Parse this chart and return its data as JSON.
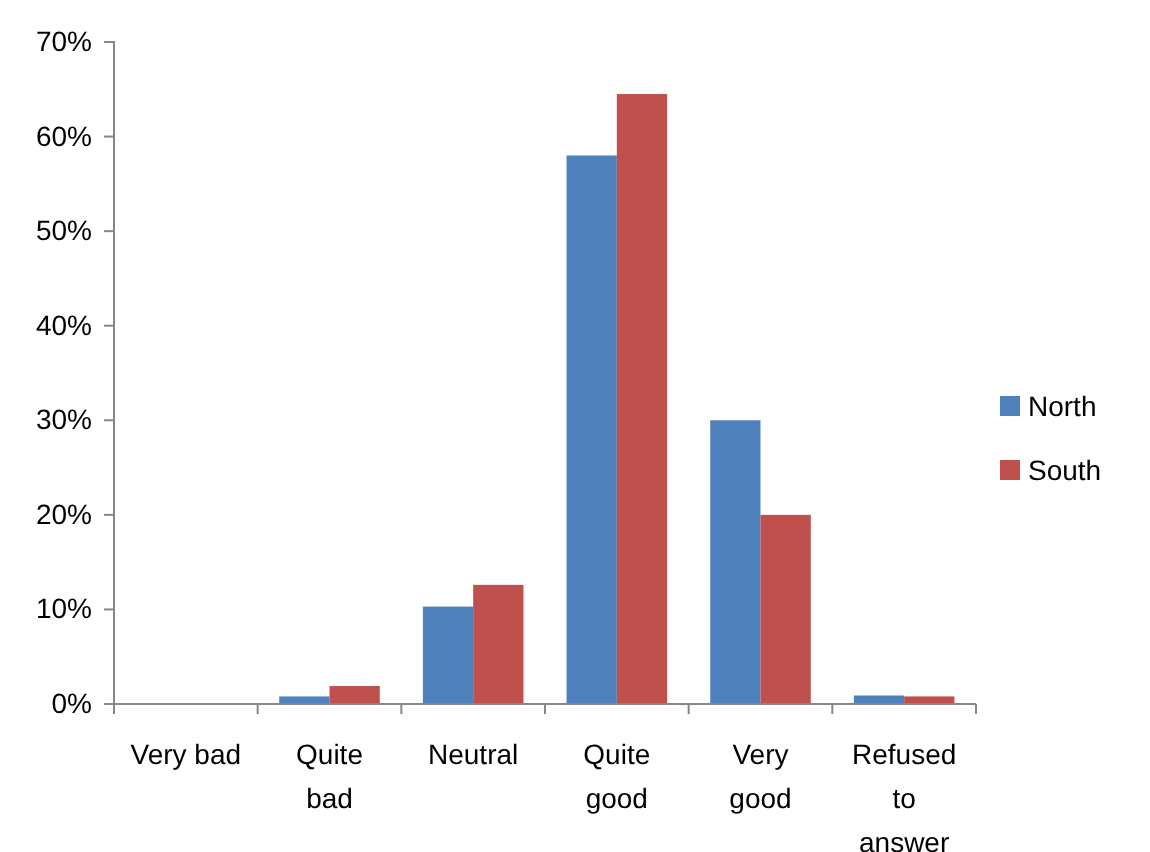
{
  "chart_data": {
    "type": "bar",
    "categories": [
      "Very bad",
      "Quite bad",
      "Neutral",
      "Quite good",
      "Very good",
      "Refused to answer"
    ],
    "series": [
      {
        "name": "North",
        "color": "#4f81bd",
        "values": [
          0,
          0.8,
          10.3,
          58,
          30,
          0.9
        ]
      },
      {
        "name": "South",
        "color": "#c0504d",
        "values": [
          0,
          1.9,
          12.6,
          64.5,
          20,
          0.8
        ]
      }
    ],
    "ylim": [
      0,
      70
    ],
    "yticks": [
      {
        "value": 0,
        "label": "0%"
      },
      {
        "value": 10,
        "label": "10%"
      },
      {
        "value": 20,
        "label": "20%"
      },
      {
        "value": 30,
        "label": "30%"
      },
      {
        "value": 40,
        "label": "40%"
      },
      {
        "value": 50,
        "label": "50%"
      },
      {
        "value": 60,
        "label": "60%"
      },
      {
        "value": 70,
        "label": "70%"
      }
    ],
    "legend": "right"
  }
}
